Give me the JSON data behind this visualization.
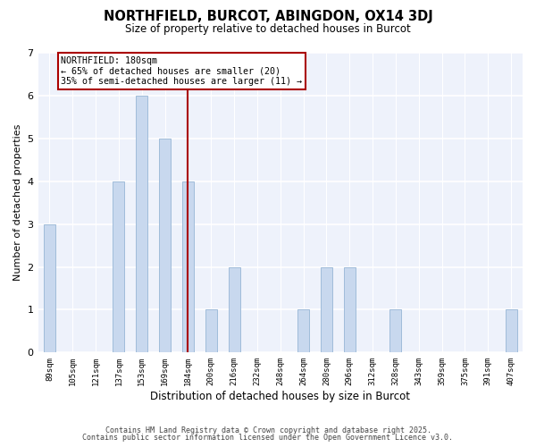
{
  "title": "NORTHFIELD, BURCOT, ABINGDON, OX14 3DJ",
  "subtitle": "Size of property relative to detached houses in Burcot",
  "xlabel": "Distribution of detached houses by size in Burcot",
  "ylabel": "Number of detached properties",
  "bins": [
    "89sqm",
    "105sqm",
    "121sqm",
    "137sqm",
    "153sqm",
    "169sqm",
    "184sqm",
    "200sqm",
    "216sqm",
    "232sqm",
    "248sqm",
    "264sqm",
    "280sqm",
    "296sqm",
    "312sqm",
    "328sqm",
    "343sqm",
    "359sqm",
    "375sqm",
    "391sqm",
    "407sqm"
  ],
  "counts": [
    3,
    0,
    0,
    4,
    6,
    5,
    4,
    1,
    2,
    0,
    0,
    1,
    2,
    2,
    0,
    1,
    0,
    0,
    0,
    0,
    1
  ],
  "bar_color": "#c8d8ee",
  "bar_edge_color": "#a0bcda",
  "vline_x_index": 6,
  "vline_color": "#aa0000",
  "annotation_title": "NORTHFIELD: 180sqm",
  "annotation_line1": "← 65% of detached houses are smaller (20)",
  "annotation_line2": "35% of semi-detached houses are larger (11) →",
  "ylim": [
    0,
    7
  ],
  "yticks": [
    0,
    1,
    2,
    3,
    4,
    5,
    6,
    7
  ],
  "footer1": "Contains HM Land Registry data © Crown copyright and database right 2025.",
  "footer2": "Contains public sector information licensed under the Open Government Licence v3.0.",
  "bg_color": "#ffffff",
  "plot_bg_color": "#eef2fb",
  "grid_color": "#ffffff",
  "bar_width": 0.5
}
